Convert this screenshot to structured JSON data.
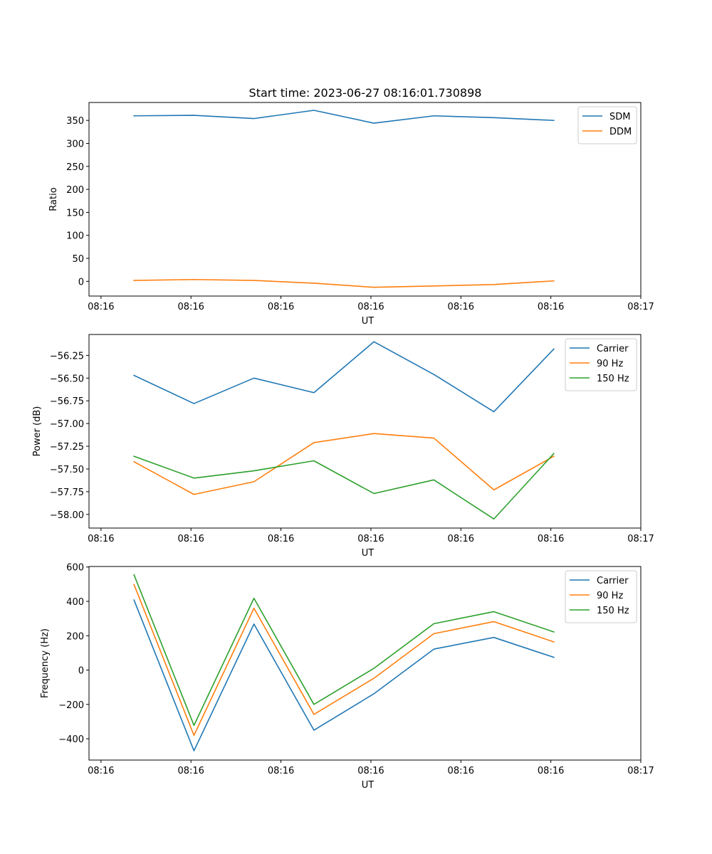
{
  "figure": {
    "title": "Start time: 2023-06-27 08:16:01.730898"
  },
  "colors": {
    "series1": "#1f77b4",
    "series2": "#ff7f0e",
    "series3": "#2ca02c"
  },
  "chart_data": [
    {
      "type": "line",
      "title": "Start time: 2023-06-27 08:16:01.730898",
      "xlabel": "UT",
      "ylabel": "Ratio",
      "x": [
        1,
        2,
        3,
        4,
        5,
        6,
        7,
        8
      ],
      "xlim": [
        0.25,
        9.45
      ],
      "x_ticks": [
        0.45,
        1.95,
        3.45,
        4.95,
        6.45,
        7.95,
        9.45
      ],
      "x_tick_labels": [
        "08:16",
        "08:16",
        "08:16",
        "08:16",
        "08:16",
        "08:16",
        "08:17"
      ],
      "ylim": [
        -32,
        389
      ],
      "y_ticks": [
        0,
        50,
        100,
        150,
        200,
        250,
        300,
        350
      ],
      "y_tick_labels": [
        "0",
        "50",
        "100",
        "150",
        "200",
        "250",
        "300",
        "350"
      ],
      "legend_position": "top-right",
      "grid": false,
      "series": [
        {
          "name": "SDM",
          "color": "#1f77b4",
          "values": [
            360,
            361,
            354,
            372,
            344,
            360,
            356,
            350
          ]
        },
        {
          "name": "DDM",
          "color": "#ff7f0e",
          "values": [
            2,
            4,
            2,
            -4,
            -13,
            -10,
            -7,
            1
          ]
        }
      ]
    },
    {
      "type": "line",
      "title": "",
      "xlabel": "UT",
      "ylabel": "Power (dB)",
      "x": [
        1,
        2,
        3,
        4,
        5,
        6,
        7,
        8
      ],
      "xlim": [
        0.25,
        9.45
      ],
      "x_ticks": [
        0.45,
        1.95,
        3.45,
        4.95,
        6.45,
        7.95,
        9.45
      ],
      "x_tick_labels": [
        "08:16",
        "08:16",
        "08:16",
        "08:16",
        "08:16",
        "08:16",
        "08:17"
      ],
      "ylim": [
        -58.15,
        -56.02
      ],
      "y_ticks": [
        -58.0,
        -57.75,
        -57.5,
        -57.25,
        -57.0,
        -56.75,
        -56.5,
        -56.25
      ],
      "y_tick_labels": [
        "−58.00",
        "−57.75",
        "−57.50",
        "−57.25",
        "−57.00",
        "−56.75",
        "−56.50",
        "−56.25"
      ],
      "legend_position": "top-right",
      "grid": false,
      "series": [
        {
          "name": "Carrier",
          "color": "#1f77b4",
          "values": [
            -56.47,
            -56.78,
            -56.5,
            -56.66,
            -56.1,
            -56.46,
            -56.87,
            -56.18
          ]
        },
        {
          "name": "90 Hz",
          "color": "#ff7f0e",
          "values": [
            -57.42,
            -57.78,
            -57.64,
            -57.21,
            -57.11,
            -57.16,
            -57.73,
            -57.36
          ]
        },
        {
          "name": "150 Hz",
          "color": "#2ca02c",
          "values": [
            -57.36,
            -57.6,
            -57.52,
            -57.41,
            -57.77,
            -57.62,
            -58.05,
            -57.33
          ]
        }
      ]
    },
    {
      "type": "line",
      "title": "",
      "xlabel": "UT",
      "ylabel": "Frequency (Hz)",
      "x": [
        1,
        2,
        3,
        4,
        5,
        6,
        7,
        8
      ],
      "xlim": [
        0.25,
        9.45
      ],
      "x_ticks": [
        0.45,
        1.95,
        3.45,
        4.95,
        6.45,
        7.95,
        9.45
      ],
      "x_tick_labels": [
        "08:16",
        "08:16",
        "08:16",
        "08:16",
        "08:16",
        "08:16",
        "08:17"
      ],
      "ylim": [
        -524,
        603
      ],
      "y_ticks": [
        -400,
        -200,
        0,
        200,
        400,
        600
      ],
      "y_tick_labels": [
        "−400",
        "−200",
        "0",
        "200",
        "400",
        "600"
      ],
      "legend_position": "top-right",
      "grid": false,
      "series": [
        {
          "name": "Carrier",
          "color": "#1f77b4",
          "values": [
            408,
            -470,
            268,
            -350,
            -138,
            122,
            190,
            74
          ]
        },
        {
          "name": "90 Hz",
          "color": "#ff7f0e",
          "values": [
            498,
            -380,
            360,
            -258,
            -48,
            212,
            282,
            164
          ]
        },
        {
          "name": "150 Hz",
          "color": "#2ca02c",
          "values": [
            555,
            -322,
            418,
            -200,
            10,
            270,
            340,
            222
          ]
        }
      ]
    }
  ]
}
